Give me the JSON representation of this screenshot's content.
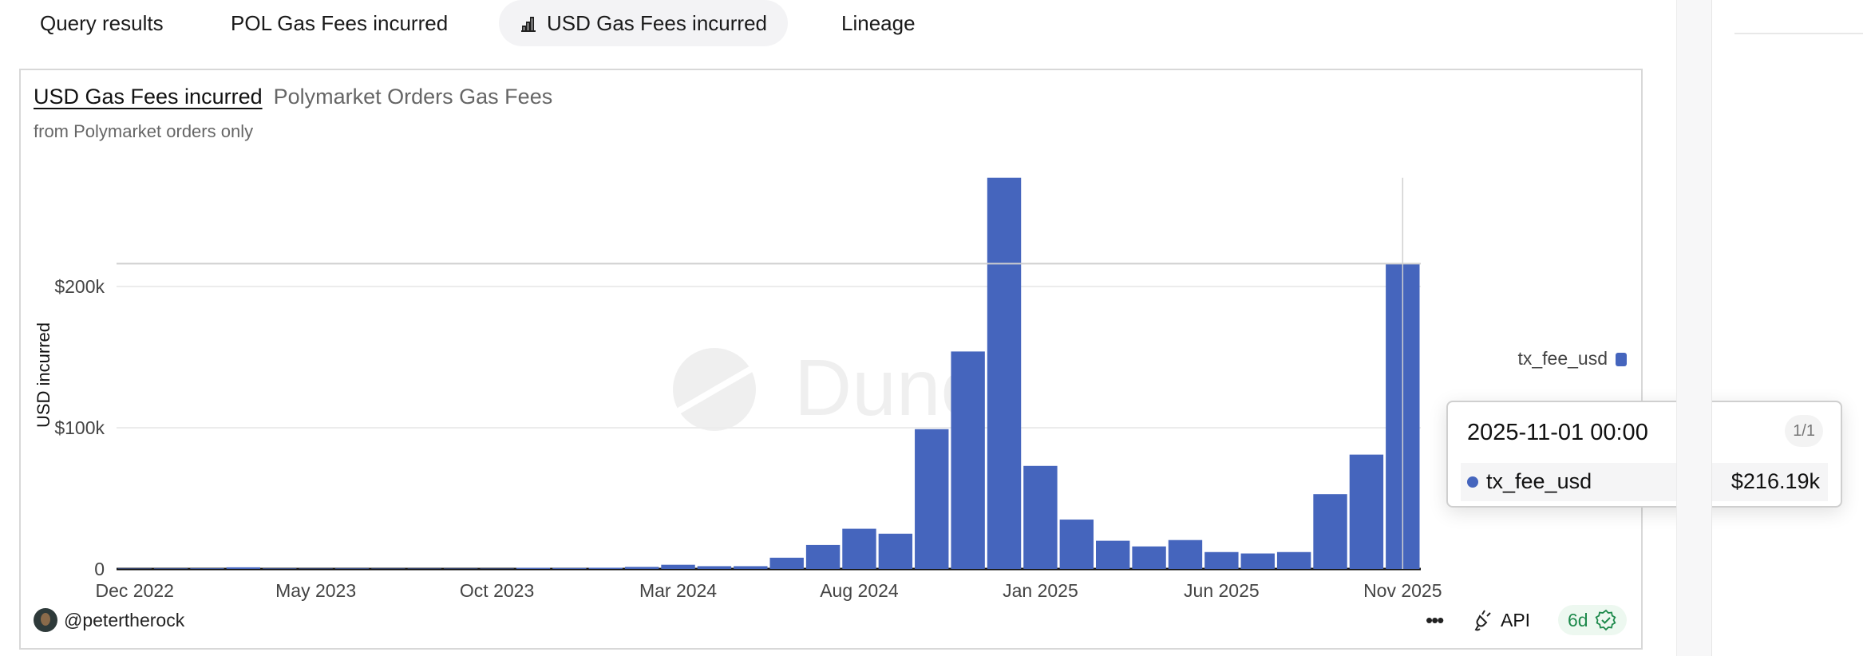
{
  "tabs": [
    {
      "label": "Query results",
      "active": false
    },
    {
      "label": "POL Gas Fees incurred",
      "active": false
    },
    {
      "label": "USD Gas Fees incurred",
      "active": true,
      "icon": "bar-chart-icon"
    },
    {
      "label": "Lineage",
      "active": false
    }
  ],
  "card": {
    "title": "USD Gas Fees incurred",
    "query_name": "Polymarket Orders Gas Fees",
    "description": "from Polymarket orders only",
    "watermark": "Dune",
    "author": "@petertherock",
    "more_label": "•••",
    "api_label": "API",
    "freshness_label": "6d"
  },
  "legend": {
    "label": "tx_fee_usd",
    "color": "#4565bd"
  },
  "tooltip": {
    "date": "2025-11-01 00:00",
    "count": "1/1",
    "series": "tx_fee_usd",
    "value": "$216.19k"
  },
  "chart_data": {
    "type": "bar",
    "ylabel": "USD incurred",
    "ylim": [
      0,
      280000
    ],
    "yticks": [
      0,
      100000,
      200000
    ],
    "ytick_labels": [
      "0",
      "$100k",
      "$200k"
    ],
    "xtick_labels": [
      "Dec 2022",
      "May 2023",
      "Oct 2023",
      "Mar 2024",
      "Aug 2024",
      "Jan 2025",
      "Jun 2025",
      "Nov 2025"
    ],
    "grid": true,
    "legend_position": "right",
    "color": "#4565bd",
    "hover_category": "2025-11",
    "categories": [
      "2022-12",
      "2023-01",
      "2023-02",
      "2023-03",
      "2023-04",
      "2023-05",
      "2023-06",
      "2023-07",
      "2023-08",
      "2023-09",
      "2023-10",
      "2023-11",
      "2023-12",
      "2024-01",
      "2024-02",
      "2024-03",
      "2024-04",
      "2024-05",
      "2024-06",
      "2024-07",
      "2024-08",
      "2024-09",
      "2024-10",
      "2024-11",
      "2024-12",
      "2025-01",
      "2025-02",
      "2025-03",
      "2025-04",
      "2025-05",
      "2025-06",
      "2025-07",
      "2025-08",
      "2025-09",
      "2025-10",
      "2025-11"
    ],
    "series": [
      {
        "name": "tx_fee_usd",
        "values": [
          300,
          400,
          500,
          1200,
          400,
          300,
          400,
          300,
          300,
          300,
          300,
          800,
          700,
          900,
          1500,
          3000,
          2000,
          2000,
          8000,
          17000,
          28500,
          25000,
          99000,
          154000,
          277000,
          73000,
          35000,
          20000,
          16000,
          20500,
          12000,
          11000,
          12000,
          53000,
          81000,
          216190
        ]
      }
    ]
  }
}
